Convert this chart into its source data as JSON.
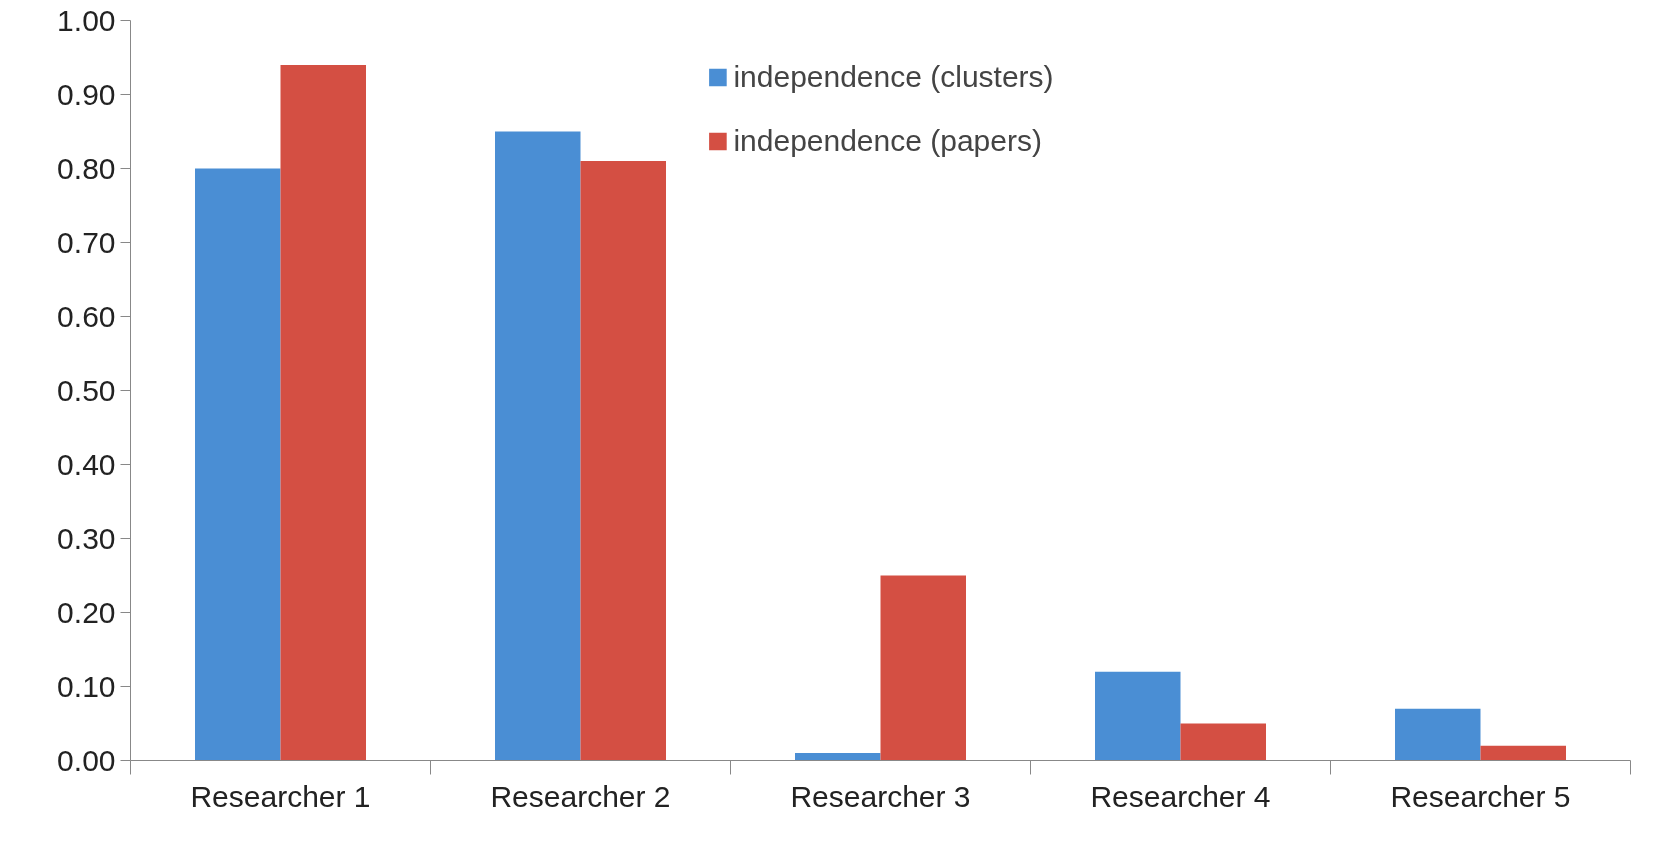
{
  "chart_data": {
    "type": "bar",
    "categories": [
      "Researcher 1",
      "Researcher 2",
      "Researcher 3",
      "Researcher 4",
      "Researcher 5"
    ],
    "series": [
      {
        "name": "independence (clusters)",
        "color": "#4a8ed4",
        "values": [
          0.8,
          0.85,
          0.01,
          0.12,
          0.07
        ]
      },
      {
        "name": "independence (papers)",
        "color": "#d44f43",
        "values": [
          0.94,
          0.81,
          0.25,
          0.05,
          0.02
        ]
      }
    ],
    "ylim": [
      0,
      1
    ],
    "yticks": [
      {
        "value": 0,
        "label": "0.00"
      },
      {
        "value": 0.1,
        "label": "0.10"
      },
      {
        "value": 0.2,
        "label": "0.20"
      },
      {
        "value": 0.3,
        "label": "0.30"
      },
      {
        "value": 0.4,
        "label": "0.40"
      },
      {
        "value": 0.5,
        "label": "0.50"
      },
      {
        "value": 0.6,
        "label": "0.60"
      },
      {
        "value": 0.7,
        "label": "0.70"
      },
      {
        "value": 0.8,
        "label": "0.80"
      },
      {
        "value": 0.9,
        "label": "0.90"
      },
      {
        "value": 1,
        "label": "1.00"
      }
    ],
    "grid": false,
    "legend": "top"
  }
}
